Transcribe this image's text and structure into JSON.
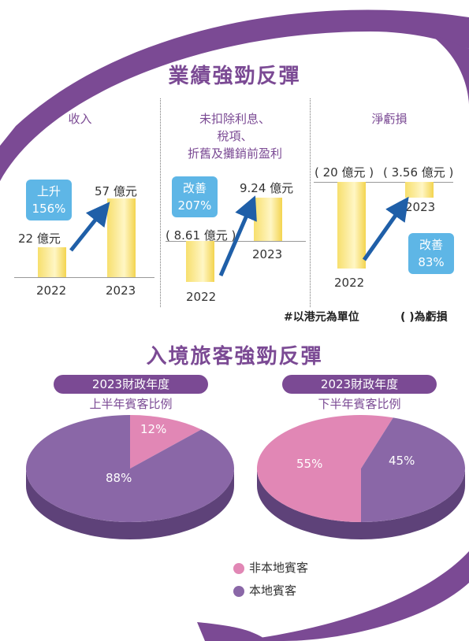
{
  "colors": {
    "accent": "#7b4a94",
    "blue_box": "#5eb6e6",
    "arrow": "#1f5fa8",
    "bar": "#f5d94f",
    "pink": "#e187b5",
    "purple": "#8a67a7"
  },
  "section1": {
    "title": "業績強勁反彈",
    "note_unit": "#以港元為單位",
    "note_loss": "(  )為虧損"
  },
  "section2": {
    "title": "入境旅客強勁反彈"
  },
  "chart_data": [
    {
      "type": "bar",
      "title": "收入",
      "categories": [
        "2022",
        "2023"
      ],
      "values": [
        22,
        57
      ],
      "value_labels": [
        "22 億元",
        "57 億元"
      ],
      "annotation": [
        "上升",
        "156%"
      ]
    },
    {
      "type": "bar",
      "title": "未扣除利息、稅項、折舊及攤銷前盈利",
      "title_lines": [
        "未扣除利息、",
        "稅項、",
        "折舊及攤銷前盈利"
      ],
      "categories": [
        "2022",
        "2023"
      ],
      "values": [
        -8.61,
        9.24
      ],
      "value_labels": [
        "( 8.61 億元 )",
        "9.24 億元"
      ],
      "annotation": [
        "改善",
        "207%"
      ]
    },
    {
      "type": "bar",
      "title": "淨虧損",
      "categories": [
        "2022",
        "2023"
      ],
      "values": [
        -20,
        -3.56
      ],
      "value_labels": [
        "( 20 億元 )",
        "( 3.56 億元 )"
      ],
      "annotation": [
        "改善",
        "83%"
      ]
    },
    {
      "type": "pie",
      "title": "2023財政年度",
      "subtitle": "上半年賓客比例",
      "categories": [
        "非本地賓客",
        "本地賓客"
      ],
      "values": [
        12,
        88
      ],
      "value_labels": [
        "12%",
        "88%"
      ]
    },
    {
      "type": "pie",
      "title": "2023財政年度",
      "subtitle": "下半年賓客比例",
      "categories": [
        "非本地賓客",
        "本地賓客"
      ],
      "values": [
        55,
        45
      ],
      "value_labels": [
        "55%",
        "45%"
      ]
    }
  ],
  "legend": {
    "items": [
      {
        "label": "非本地賓客",
        "color": "#e187b5"
      },
      {
        "label": "本地賓客",
        "color": "#8a67a7"
      }
    ]
  }
}
